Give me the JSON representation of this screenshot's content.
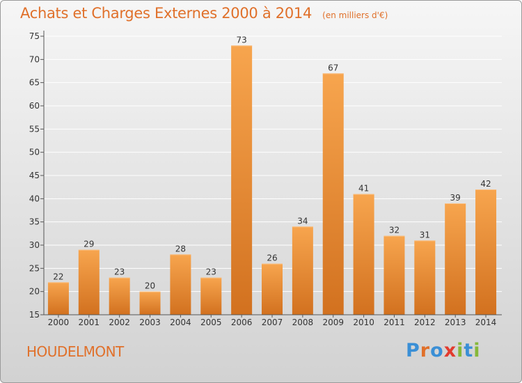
{
  "header": {
    "title": "Achats et Charges Externes 2000 à 2014",
    "subtitle": "(en milliers d'€)"
  },
  "footer": {
    "commune": "HOUDELMONT",
    "logo": {
      "text": "Proxiti",
      "letters": [
        {
          "ch": "P",
          "color": "#3a8fd6"
        },
        {
          "ch": "r",
          "color": "#e0702a"
        },
        {
          "ch": "o",
          "color": "#3a8fd6"
        },
        {
          "ch": "x",
          "color": "#e23b2e"
        },
        {
          "ch": "i",
          "color": "#86b83a"
        },
        {
          "ch": "t",
          "color": "#3a8fd6"
        },
        {
          "ch": "i",
          "color": "#86b83a"
        }
      ]
    }
  },
  "colors": {
    "accent": "#e0702a",
    "bar_light": "#f7a54e",
    "bar_dark": "#d2711f",
    "grid": "#ffffff",
    "text": "#333333"
  },
  "chart_data": {
    "type": "bar",
    "title": "Achats et Charges Externes 2000 à 2014",
    "subtitle": "(en milliers d'€)",
    "categories": [
      "2000",
      "2001",
      "2002",
      "2003",
      "2004",
      "2005",
      "2006",
      "2007",
      "2008",
      "2009",
      "2010",
      "2011",
      "2012",
      "2013",
      "2014"
    ],
    "values": [
      22,
      29,
      23,
      20,
      28,
      23,
      73,
      26,
      34,
      67,
      41,
      32,
      31,
      39,
      42
    ],
    "data_labels": [
      "22",
      "29",
      "23",
      "20",
      "28",
      "23",
      "73",
      "26",
      "34",
      "67",
      "41",
      "32",
      "31",
      "39",
      "42"
    ],
    "ylim": [
      15,
      75
    ],
    "yticks": [
      15,
      20,
      25,
      30,
      35,
      40,
      45,
      50,
      55,
      60,
      65,
      70,
      75
    ],
    "grid": true
  }
}
